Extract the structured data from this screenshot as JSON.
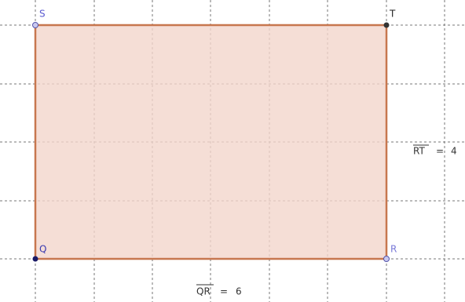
{
  "points": [
    {
      "label": "S"
    },
    {
      "label": "T"
    },
    {
      "label": "Q"
    },
    {
      "label": "R"
    }
  ],
  "measurements": [
    {
      "name": "RT",
      "relation": "=",
      "value": 4
    },
    {
      "name": "QR",
      "relation": "=",
      "value": 6
    }
  ]
}
